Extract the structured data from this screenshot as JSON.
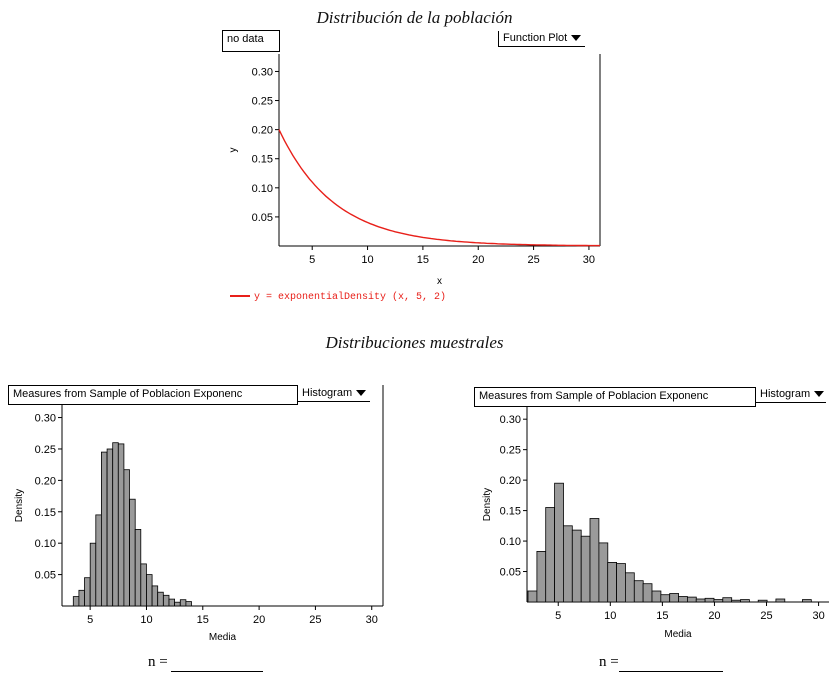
{
  "population": {
    "title": "Distribución de la población",
    "source_label": "no data",
    "menu_label": "Function Plot",
    "legend_text": "y = exponentialDensity (x, 5, 2)",
    "colors": {
      "curve": "#e8201a",
      "axis": "#000000"
    }
  },
  "samples_title": "Distribuciones muestrales",
  "panels": [
    {
      "header": "Measures from Sample of Poblacion Exponenc",
      "menu_label": "Histogram",
      "n_label": "n ="
    },
    {
      "header": "Measures from Sample of Poblacion Exponenc",
      "menu_label": "Histogram",
      "n_label": "n ="
    }
  ],
  "chart_data": [
    {
      "type": "line",
      "title": "Distribución de la población",
      "xlabel": "x",
      "ylabel": "y",
      "xlim": [
        2,
        31
      ],
      "ylim": [
        0,
        0.33
      ],
      "xticks": [
        "5",
        "10",
        "15",
        "20",
        "25",
        "30"
      ],
      "yticks": [
        "0.05",
        "0.10",
        "0.15",
        "0.20",
        "0.25",
        "0.30"
      ],
      "series": [
        {
          "name": "y = exponentialDensity (x, 5, 2)",
          "function": "exponentialDensity",
          "mean": 5,
          "shift": 2
        }
      ]
    },
    {
      "type": "bar",
      "subtype": "histogram",
      "xlabel": "Media",
      "ylabel": "Density",
      "xlim": [
        2.5,
        31
      ],
      "ylim": [
        0,
        0.32
      ],
      "xticks": [
        "5",
        "10",
        "15",
        "20",
        "25",
        "30"
      ],
      "yticks": [
        "0.05",
        "0.10",
        "0.15",
        "0.20",
        "0.25",
        "0.30"
      ],
      "bin_width": 0.5,
      "bin_start": 3.5,
      "values": [
        0.015,
        0.025,
        0.045,
        0.1,
        0.145,
        0.245,
        0.25,
        0.26,
        0.258,
        0.217,
        0.17,
        0.122,
        0.067,
        0.05,
        0.032,
        0.022,
        0.017,
        0.011,
        0.006,
        0.01,
        0.007
      ]
    },
    {
      "type": "bar",
      "subtype": "histogram",
      "xlabel": "Media",
      "ylabel": "Density",
      "xlim": [
        2,
        31
      ],
      "ylim": [
        0,
        0.32
      ],
      "xticks": [
        "5",
        "10",
        "15",
        "20",
        "25",
        "30"
      ],
      "yticks": [
        "0.05",
        "0.10",
        "0.15",
        "0.20",
        "0.25",
        "0.30"
      ],
      "bin_width": 0.85,
      "bin_start": 2.1,
      "values": [
        0.018,
        0.083,
        0.155,
        0.195,
        0.125,
        0.118,
        0.108,
        0.137,
        0.097,
        0.065,
        0.063,
        0.048,
        0.035,
        0.03,
        0.018,
        0.012,
        0.014,
        0.009,
        0.008,
        0.005,
        0.006,
        0.004,
        0.007,
        0.003,
        0.004,
        0.0,
        0.003,
        0.0,
        0.005,
        0.0,
        0.0,
        0.004
      ]
    }
  ]
}
